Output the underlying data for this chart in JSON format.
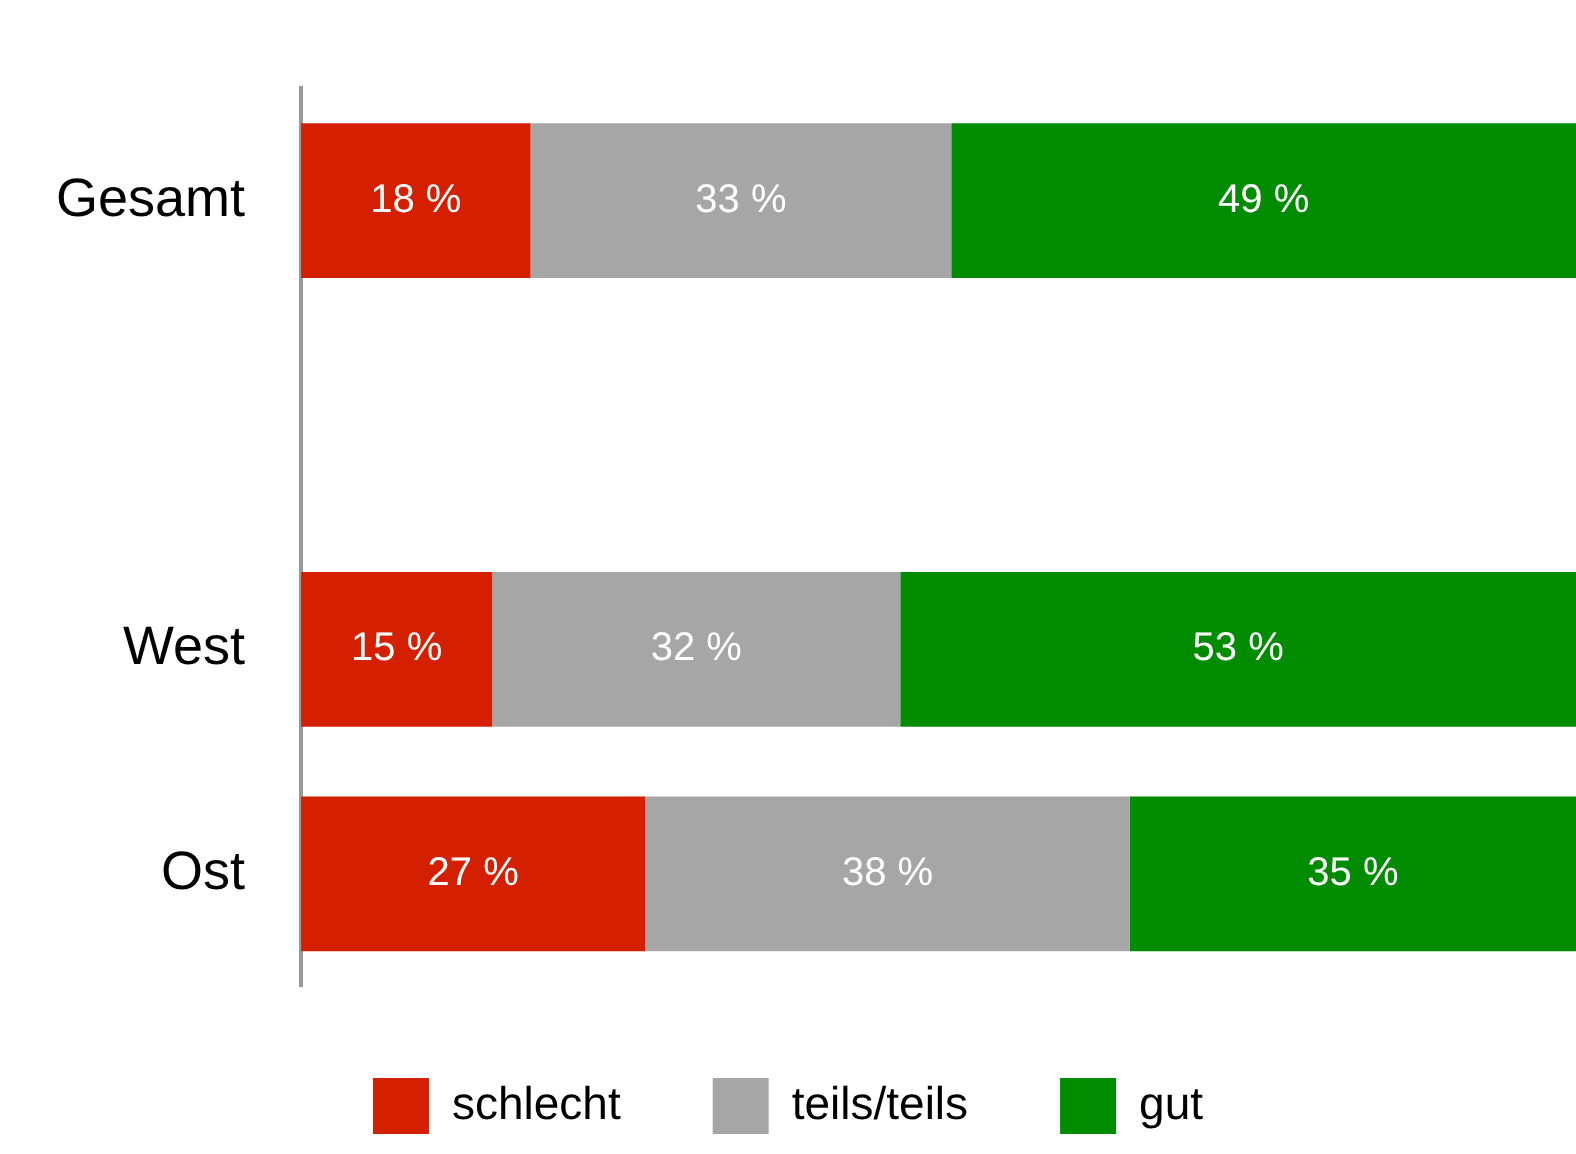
{
  "chart_data": {
    "type": "bar",
    "orientation": "horizontal",
    "stacked": true,
    "categories": [
      "Gesamt",
      null,
      "West",
      "Ost"
    ],
    "xlim": [
      0,
      100
    ],
    "tick_labels": "y",
    "grid": false,
    "legend": "bottom",
    "series": [
      {
        "name": "schlecht",
        "color": "#d42000",
        "values": [
          18,
          null,
          15,
          27
        ],
        "value_labels": [
          "18 %",
          null,
          "15 %",
          "27 %"
        ]
      },
      {
        "name": "teils/teils",
        "color": "#a6a6a6",
        "values": [
          33,
          null,
          32,
          38
        ],
        "value_labels": [
          "33 %",
          null,
          "32 %",
          "38 %"
        ]
      },
      {
        "name": "gut",
        "color": "#008c00",
        "values": [
          49,
          null,
          53,
          35
        ],
        "value_labels": [
          "49 %",
          null,
          "53 %",
          "35 %"
        ]
      }
    ]
  }
}
